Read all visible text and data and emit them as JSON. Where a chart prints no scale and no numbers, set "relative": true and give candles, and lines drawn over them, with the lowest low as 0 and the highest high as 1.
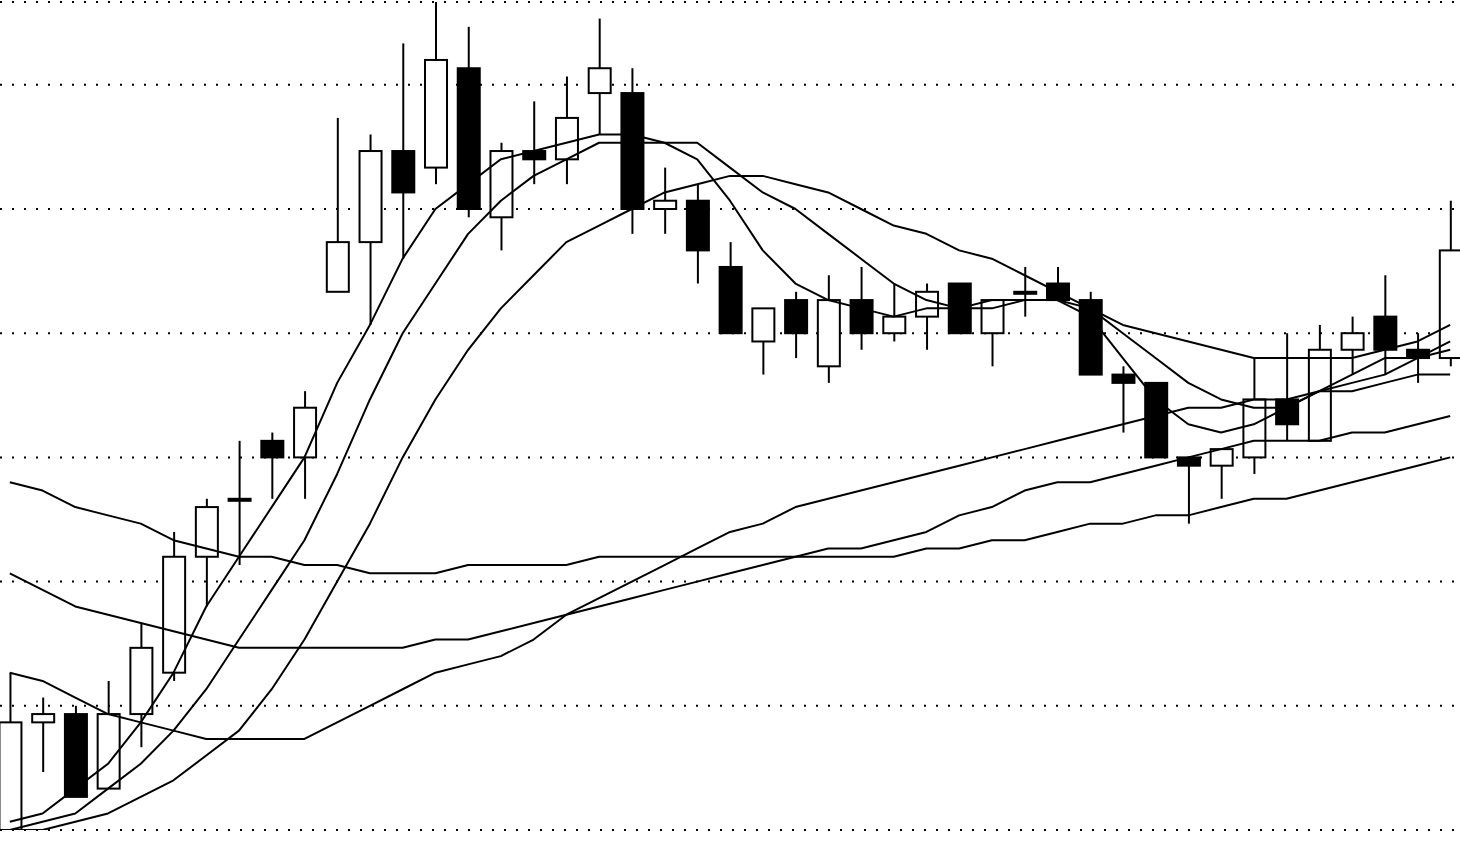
{
  "chart_data": {
    "type": "candlestick",
    "relative": true,
    "grid": "y",
    "marker": "none",
    "color": "#000000",
    "categories": [
      null,
      null,
      null,
      null,
      null,
      null,
      null,
      null,
      null,
      null,
      null,
      null,
      null,
      null,
      null,
      null,
      null,
      null,
      null,
      null,
      null,
      null,
      null,
      null,
      null,
      null,
      null,
      null,
      null,
      null,
      null,
      null,
      null,
      null,
      null,
      null,
      null,
      null,
      null,
      null,
      null,
      null,
      null,
      null,
      null
    ],
    "ohlc": [
      [
        0.0,
        0.19,
        0.0,
        0.13
      ],
      [
        0.13,
        0.16,
        0.07,
        0.14
      ],
      [
        0.14,
        0.15,
        0.04,
        0.04
      ],
      [
        0.05,
        0.18,
        0.05,
        0.14
      ],
      [
        0.14,
        0.25,
        0.1,
        0.22
      ],
      [
        0.19,
        0.36,
        0.18,
        0.33
      ],
      [
        0.33,
        0.4,
        0.27,
        0.39
      ],
      [
        0.4,
        0.47,
        0.32,
        0.4
      ],
      [
        0.47,
        0.48,
        0.4,
        0.45
      ],
      [
        0.45,
        0.53,
        0.4,
        0.51
      ],
      [
        0.65,
        0.86,
        0.65,
        0.71
      ],
      [
        0.71,
        0.84,
        0.61,
        0.82
      ],
      [
        0.82,
        0.95,
        0.69,
        0.77
      ],
      [
        0.8,
        1.0,
        0.78,
        0.93
      ],
      [
        0.92,
        0.97,
        0.74,
        0.75
      ],
      [
        0.74,
        0.83,
        0.7,
        0.82
      ],
      [
        0.82,
        0.88,
        0.78,
        0.81
      ],
      [
        0.81,
        0.91,
        0.78,
        0.86
      ],
      [
        0.89,
        0.98,
        0.84,
        0.92
      ],
      [
        0.89,
        0.92,
        0.72,
        0.75
      ],
      [
        0.75,
        0.8,
        0.72,
        0.76
      ],
      [
        0.76,
        0.78,
        0.66,
        0.7
      ],
      [
        0.68,
        0.71,
        0.6,
        0.6
      ],
      [
        0.59,
        0.63,
        0.55,
        0.63
      ],
      [
        0.64,
        0.65,
        0.57,
        0.6
      ],
      [
        0.56,
        0.67,
        0.54,
        0.64
      ],
      [
        0.64,
        0.68,
        0.58,
        0.6
      ],
      [
        0.6,
        0.66,
        0.59,
        0.62
      ],
      [
        0.62,
        0.66,
        0.58,
        0.65
      ],
      [
        0.66,
        0.66,
        0.6,
        0.6
      ],
      [
        0.6,
        0.64,
        0.56,
        0.64
      ],
      [
        0.65,
        0.68,
        0.62,
        0.65
      ],
      [
        0.66,
        0.68,
        0.64,
        0.64
      ],
      [
        0.64,
        0.65,
        0.55,
        0.55
      ],
      [
        0.55,
        0.56,
        0.48,
        0.54
      ],
      [
        0.54,
        0.54,
        0.45,
        0.45
      ],
      [
        0.45,
        0.45,
        0.37,
        0.44
      ],
      [
        0.44,
        0.46,
        0.4,
        0.46
      ],
      [
        0.45,
        0.57,
        0.43,
        0.52
      ],
      [
        0.52,
        0.6,
        0.47,
        0.49
      ],
      [
        0.47,
        0.61,
        0.47,
        0.58
      ],
      [
        0.58,
        0.62,
        0.55,
        0.6
      ],
      [
        0.62,
        0.67,
        0.55,
        0.58
      ],
      [
        0.58,
        0.6,
        0.54,
        0.57
      ],
      [
        0.57,
        0.76,
        0.56,
        0.7
      ]
    ],
    "series": [
      {
        "type": "line",
        "color": "#000000",
        "values": [
          0.01,
          0.02,
          0.05,
          0.08,
          0.13,
          0.19,
          0.27,
          0.33,
          0.39,
          0.45,
          0.54,
          0.61,
          0.69,
          0.75,
          0.78,
          0.81,
          0.82,
          0.83,
          0.84,
          0.84,
          0.83,
          0.81,
          0.76,
          0.7,
          0.66,
          0.64,
          0.63,
          0.62,
          0.63,
          0.63,
          0.64,
          0.64,
          0.64,
          0.62,
          0.57,
          0.52,
          0.49,
          0.48,
          0.49,
          0.51,
          0.53,
          0.55,
          0.57,
          0.57,
          0.59
        ]
      },
      {
        "type": "line",
        "color": "#000000",
        "values": [
          0.0,
          0.01,
          0.02,
          0.05,
          0.08,
          0.12,
          0.17,
          0.23,
          0.29,
          0.35,
          0.43,
          0.52,
          0.6,
          0.66,
          0.72,
          0.76,
          0.79,
          0.81,
          0.83,
          0.83,
          0.83,
          0.83,
          0.8,
          0.77,
          0.75,
          0.72,
          0.69,
          0.66,
          0.64,
          0.63,
          0.63,
          0.64,
          0.64,
          0.63,
          0.6,
          0.57,
          0.54,
          0.52,
          0.51,
          0.51,
          0.53,
          0.54,
          0.55,
          0.57,
          0.58
        ]
      },
      {
        "type": "line",
        "color": "#000000",
        "values": [
          0.0,
          0.0,
          0.01,
          0.02,
          0.04,
          0.06,
          0.09,
          0.12,
          0.17,
          0.23,
          0.3,
          0.37,
          0.45,
          0.52,
          0.58,
          0.63,
          0.67,
          0.71,
          0.73,
          0.75,
          0.77,
          0.78,
          0.79,
          0.79,
          0.78,
          0.77,
          0.75,
          0.73,
          0.72,
          0.7,
          0.69,
          0.67,
          0.65,
          0.63,
          0.61,
          0.6,
          0.59,
          0.58,
          0.57,
          0.57,
          0.57,
          0.57,
          0.58,
          0.59,
          0.61
        ]
      },
      {
        "type": "line",
        "color": "#000000",
        "values": [
          0.19,
          0.18,
          0.16,
          0.14,
          0.13,
          0.12,
          0.11,
          0.11,
          0.11,
          0.11,
          0.13,
          0.15,
          0.17,
          0.19,
          0.2,
          0.21,
          0.23,
          0.26,
          0.28,
          0.3,
          0.32,
          0.34,
          0.36,
          0.37,
          0.39,
          0.4,
          0.41,
          0.42,
          0.43,
          0.44,
          0.45,
          0.46,
          0.47,
          0.48,
          0.49,
          0.5,
          0.51,
          0.51,
          0.52,
          0.52,
          0.53,
          0.53,
          0.54,
          0.55,
          0.55
        ]
      },
      {
        "type": "line",
        "color": "#000000",
        "values": [
          0.31,
          0.29,
          0.27,
          0.26,
          0.25,
          0.24,
          0.23,
          0.22,
          0.22,
          0.22,
          0.22,
          0.22,
          0.22,
          0.23,
          0.23,
          0.24,
          0.25,
          0.26,
          0.27,
          0.28,
          0.29,
          0.3,
          0.31,
          0.32,
          0.33,
          0.34,
          0.34,
          0.35,
          0.36,
          0.38,
          0.39,
          0.41,
          0.42,
          0.42,
          0.43,
          0.44,
          0.45,
          0.46,
          0.47,
          0.47,
          0.47,
          0.48,
          0.48,
          0.49,
          0.5
        ]
      },
      {
        "type": "line",
        "color": "#000000",
        "values": [
          0.42,
          0.41,
          0.39,
          0.38,
          0.37,
          0.35,
          0.34,
          0.33,
          0.33,
          0.32,
          0.32,
          0.31,
          0.31,
          0.31,
          0.32,
          0.32,
          0.32,
          0.32,
          0.33,
          0.33,
          0.33,
          0.33,
          0.33,
          0.33,
          0.33,
          0.33,
          0.33,
          0.33,
          0.34,
          0.34,
          0.35,
          0.35,
          0.36,
          0.37,
          0.37,
          0.38,
          0.38,
          0.39,
          0.4,
          0.4,
          0.41,
          0.42,
          0.43,
          0.44,
          0.45
        ]
      }
    ]
  }
}
